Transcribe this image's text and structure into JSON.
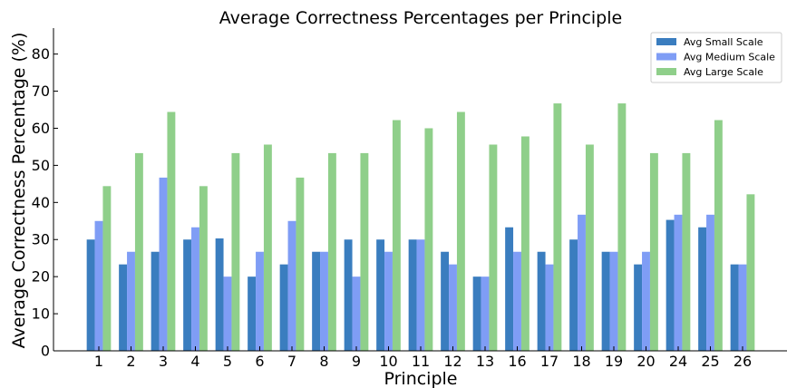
{
  "chart_data": {
    "type": "bar",
    "title": "Average Correctness Percentages per Principle",
    "xlabel": "Principle",
    "ylabel": "Average Correctness Percentage (%)",
    "ylim": [
      0,
      87
    ],
    "yticks": [
      0,
      10,
      20,
      30,
      40,
      50,
      60,
      70,
      80
    ],
    "grid": false,
    "legend_position": "top-right",
    "categories": [
      "1",
      "2",
      "3",
      "4",
      "5",
      "6",
      "7",
      "8",
      "9",
      "10",
      "11",
      "12",
      "13",
      "16",
      "17",
      "18",
      "19",
      "20",
      "24",
      "25",
      "26"
    ],
    "series": [
      {
        "name": "Avg Small Scale",
        "color": "#3a7dbf",
        "values": [
          30.0,
          23.3,
          26.7,
          30.0,
          30.3,
          20.0,
          23.3,
          26.7,
          30.0,
          30.0,
          30.0,
          26.7,
          20.0,
          33.3,
          26.7,
          30.0,
          26.7,
          23.3,
          35.3,
          33.3,
          23.3
        ]
      },
      {
        "name": "Avg Medium Scale",
        "color": "#7f9df5",
        "values": [
          35.0,
          26.7,
          46.7,
          33.3,
          20.0,
          26.7,
          35.0,
          26.7,
          20.0,
          26.7,
          30.0,
          23.3,
          20.0,
          26.7,
          23.3,
          36.7,
          26.7,
          26.7,
          36.7,
          36.7,
          23.3
        ]
      },
      {
        "name": "Avg Large Scale",
        "color": "#8fcf8a",
        "values": [
          44.4,
          53.3,
          64.4,
          44.4,
          53.3,
          55.6,
          46.7,
          53.3,
          53.3,
          62.2,
          60.0,
          64.4,
          55.6,
          57.8,
          66.7,
          55.6,
          66.7,
          53.3,
          53.3,
          62.2,
          42.2
        ]
      }
    ]
  }
}
